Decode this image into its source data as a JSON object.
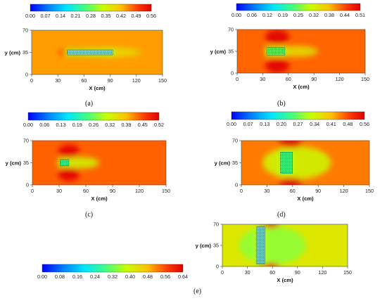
{
  "chart_data": [
    {
      "type": "heatmap",
      "id": "a",
      "caption": "(a)",
      "colorbar_ticks": [
        "0.00",
        "0.07",
        "0.14",
        "0.21",
        "0.28",
        "0.35",
        "0.42",
        "0.49",
        "0.56"
      ],
      "colorbar_range": [
        0,
        0.56
      ],
      "xlabel": "X (cm)",
      "ylabel": "y (cm)",
      "xticks": [
        0,
        30,
        60,
        90,
        120,
        150
      ],
      "yticks": [
        0,
        35,
        70
      ],
      "xlim": [
        0,
        150
      ],
      "ylim": [
        0,
        70
      ],
      "background_value": 0.44,
      "blockage": {
        "x": [
          41,
          93
        ],
        "y": [
          31,
          39
        ],
        "value": 0.28
      },
      "accel_spots": [
        {
          "x": 50,
          "y": 35,
          "rx": 20,
          "ry": 8,
          "value": 0.49
        }
      ],
      "wake": {
        "x": 95,
        "y": 35,
        "rx": 30,
        "ry": 7,
        "value": 0.38
      }
    },
    {
      "type": "heatmap",
      "id": "b",
      "caption": "(b)",
      "colorbar_ticks": [
        "0.00",
        "0.06",
        "0.12",
        "0.19",
        "0.25",
        "0.32",
        "0.38",
        "0.44",
        "0.51"
      ],
      "colorbar_range": [
        0,
        0.51
      ],
      "xlabel": "X (cm)",
      "ylabel": "y (cm)",
      "xticks": [
        0,
        30,
        60,
        90,
        120,
        150
      ],
      "yticks": [
        0,
        35,
        70
      ],
      "xlim": [
        0,
        150
      ],
      "ylim": [
        0,
        70
      ],
      "background_value": 0.43,
      "blockage": {
        "x": [
          35,
          56
        ],
        "y": [
          29,
          41
        ],
        "value": 0.25
      },
      "accel_spots": [
        {
          "x": 47,
          "y": 58,
          "rx": 14,
          "ry": 12,
          "value": 0.51
        },
        {
          "x": 47,
          "y": 12,
          "rx": 14,
          "ry": 12,
          "value": 0.51
        }
      ],
      "wake": {
        "x": 70,
        "y": 35,
        "rx": 25,
        "ry": 9,
        "value": 0.34
      }
    },
    {
      "type": "heatmap",
      "id": "c",
      "caption": "(c)",
      "colorbar_ticks": [
        "0.00",
        "0.06",
        "0.13",
        "0.19",
        "0.26",
        "0.32",
        "0.39",
        "0.45",
        "0.52"
      ],
      "colorbar_range": [
        0,
        0.52
      ],
      "xlabel": "X (cm)",
      "ylabel": "y (cm)",
      "xticks": [
        0,
        30,
        60,
        90,
        120,
        150
      ],
      "yticks": [
        0,
        35,
        70
      ],
      "xlim": [
        0,
        150
      ],
      "ylim": [
        0,
        70
      ],
      "background_value": 0.44,
      "blockage": {
        "x": [
          31,
          41
        ],
        "y": [
          30,
          40
        ],
        "value": 0.22
      },
      "accel_spots": [
        {
          "x": 41,
          "y": 53,
          "rx": 12,
          "ry": 11,
          "value": 0.52
        },
        {
          "x": 41,
          "y": 17,
          "rx": 12,
          "ry": 11,
          "value": 0.52
        }
      ],
      "wake": {
        "x": 55,
        "y": 35,
        "rx": 20,
        "ry": 9,
        "value": 0.32
      }
    },
    {
      "type": "heatmap",
      "id": "d",
      "caption": "(d)",
      "colorbar_ticks": [
        "0.00",
        "0.07",
        "0.13",
        "0.20",
        "0.27",
        "0.34",
        "0.41",
        "0.48",
        "0.56"
      ],
      "colorbar_range": [
        0,
        0.56
      ],
      "xlabel": "X (cm)",
      "ylabel": "y (cm)",
      "xticks": [
        0,
        30,
        60,
        90,
        120,
        150
      ],
      "yticks": [
        0,
        35,
        70
      ],
      "xlim": [
        0,
        150
      ],
      "ylim": [
        0,
        70
      ],
      "background_value": 0.46,
      "blockage": {
        "x": [
          46,
          60
        ],
        "y": [
          18,
          52
        ],
        "value": 0.25
      },
      "accel_spots": [
        {
          "x": 58,
          "y": 66,
          "rx": 14,
          "ry": 8,
          "value": 0.56
        },
        {
          "x": 58,
          "y": 4,
          "rx": 14,
          "ry": 8,
          "value": 0.56
        }
      ],
      "wake": {
        "x": 65,
        "y": 35,
        "rx": 40,
        "ry": 26,
        "value": 0.34
      }
    },
    {
      "type": "heatmap",
      "id": "e",
      "caption": "(e)",
      "colorbar_ticks": [
        "0.00",
        "0.08",
        "0.16",
        "0.24",
        "0.32",
        "0.40",
        "0.48",
        "0.56",
        "0.64"
      ],
      "colorbar_range": [
        0,
        0.64
      ],
      "xlabel": "X (cm)",
      "ylabel": "y (cm)",
      "xticks": [
        0,
        30,
        60,
        90,
        120,
        150
      ],
      "yticks": [
        0,
        35,
        70
      ],
      "xlim": [
        0,
        150
      ],
      "ylim": [
        0,
        70
      ],
      "background_value": 0.42,
      "blockage": {
        "x": [
          41,
          51
        ],
        "y": [
          4,
          66
        ],
        "value": 0.28
      },
      "accel_spots": [
        {
          "x": 55,
          "y": 70,
          "rx": 14,
          "ry": 6,
          "value": 0.64
        },
        {
          "x": 55,
          "y": 0,
          "rx": 14,
          "ry": 6,
          "value": 0.64
        }
      ],
      "wake": {
        "x": 60,
        "y": 35,
        "rx": 40,
        "ry": 32,
        "value": 0.34
      }
    }
  ]
}
